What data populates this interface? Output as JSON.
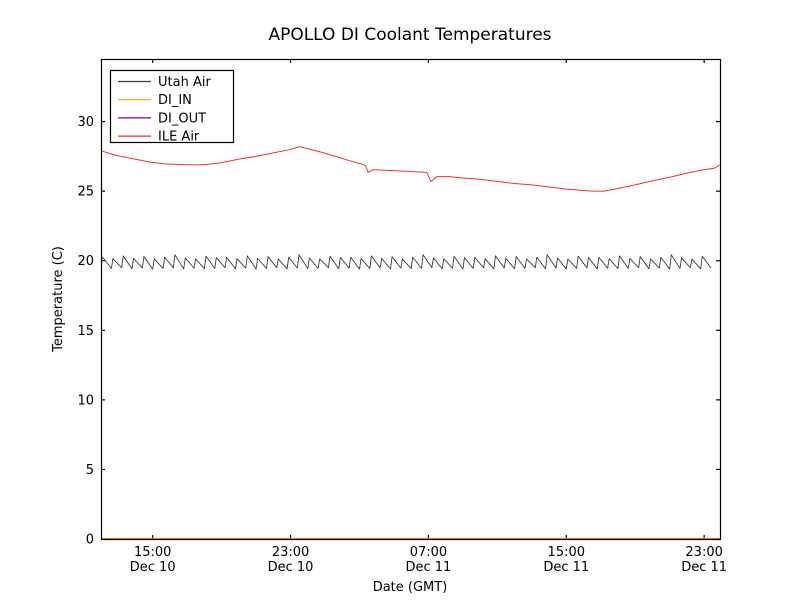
{
  "figure": {
    "background": "#ffffff",
    "axes_color": "#000000"
  },
  "chart_data": {
    "type": "line",
    "title": "APOLLO DI Coolant Temperatures",
    "xlabel": "Date (GMT)",
    "ylabel": "Temperature (C)",
    "grid": false,
    "x_unit_note": "hours since Dec 10 12:00 GMT (left edge of plot)",
    "xlim": [
      0,
      35.92
    ],
    "ylim": [
      0,
      34.5
    ],
    "yticks": [
      0,
      5,
      10,
      15,
      20,
      25,
      30
    ],
    "xticks": [
      {
        "x": 3,
        "time": "15:00",
        "date": "Dec 10"
      },
      {
        "x": 11,
        "time": "23:00",
        "date": "Dec 10"
      },
      {
        "x": 19,
        "time": "07:00",
        "date": "Dec 11"
      },
      {
        "x": 27,
        "time": "15:00",
        "date": "Dec 11"
      },
      {
        "x": 35,
        "time": "23:00",
        "date": "Dec 11"
      }
    ],
    "legend": {
      "position": "upper left",
      "entries": [
        {
          "label": "Utah Air",
          "color": "#3c3c3c"
        },
        {
          "label": "DI_IN",
          "color": "#ffa500"
        },
        {
          "label": "DI_OUT",
          "color": "#800080"
        },
        {
          "label": "ILE Air",
          "color": "#ee3333"
        }
      ]
    },
    "series": [
      {
        "name": "Utah Air",
        "color": "#3c3c3c",
        "shape": "sawtooth",
        "sawtooth": {
          "start": 0.0,
          "end": 35.92,
          "period_h": 0.6,
          "trough": 19.45,
          "rise_fraction": 0.15,
          "start_value": 19.95,
          "amplitudes": [
            0.8,
            0.7,
            0.9,
            0.72,
            0.85,
            0.68,
            0.8,
            0.98,
            0.75,
            0.68,
            0.88,
            0.78
          ],
          "trough_jitter": [
            0.0,
            0.1,
            -0.06,
            0.05,
            -0.1,
            0.0,
            0.08,
            -0.08,
            0.04,
            -0.04
          ]
        }
      },
      {
        "name": "DI_IN",
        "color": "#ffa500",
        "points": [
          [
            0,
            0
          ],
          [
            35.92,
            0
          ]
        ]
      },
      {
        "name": "DI_OUT",
        "color": "#800080",
        "points": [
          [
            0,
            0
          ],
          [
            35.92,
            0
          ]
        ]
      },
      {
        "name": "ILE Air",
        "color": "#ee3333",
        "points": [
          [
            0,
            27.9
          ],
          [
            0.8,
            27.6
          ],
          [
            1.8,
            27.35
          ],
          [
            2.8,
            27.1
          ],
          [
            3.8,
            26.95
          ],
          [
            5,
            26.9
          ],
          [
            6,
            26.9
          ],
          [
            7,
            27.05
          ],
          [
            8,
            27.3
          ],
          [
            9,
            27.5
          ],
          [
            10,
            27.75
          ],
          [
            11,
            28.0
          ],
          [
            11.5,
            28.2
          ],
          [
            12,
            28.05
          ],
          [
            12.8,
            27.8
          ],
          [
            13.6,
            27.5
          ],
          [
            14.4,
            27.2
          ],
          [
            15.1,
            26.95
          ],
          [
            15.35,
            26.85
          ],
          [
            15.5,
            26.35
          ],
          [
            15.8,
            26.55
          ],
          [
            16.5,
            26.5
          ],
          [
            17.3,
            26.45
          ],
          [
            18.2,
            26.4
          ],
          [
            18.9,
            26.35
          ],
          [
            19.15,
            25.7
          ],
          [
            19.5,
            26.05
          ],
          [
            20.2,
            26.05
          ],
          [
            21,
            25.95
          ],
          [
            22,
            25.85
          ],
          [
            23,
            25.7
          ],
          [
            24,
            25.55
          ],
          [
            25,
            25.45
          ],
          [
            26,
            25.3
          ],
          [
            27,
            25.15
          ],
          [
            28,
            25.05
          ],
          [
            28.5,
            25.0
          ],
          [
            29.2,
            25.0
          ],
          [
            30,
            25.2
          ],
          [
            31,
            25.45
          ],
          [
            32,
            25.75
          ],
          [
            33,
            26.0
          ],
          [
            34,
            26.3
          ],
          [
            35,
            26.55
          ],
          [
            35.6,
            26.65
          ],
          [
            35.92,
            26.9
          ]
        ]
      }
    ]
  }
}
